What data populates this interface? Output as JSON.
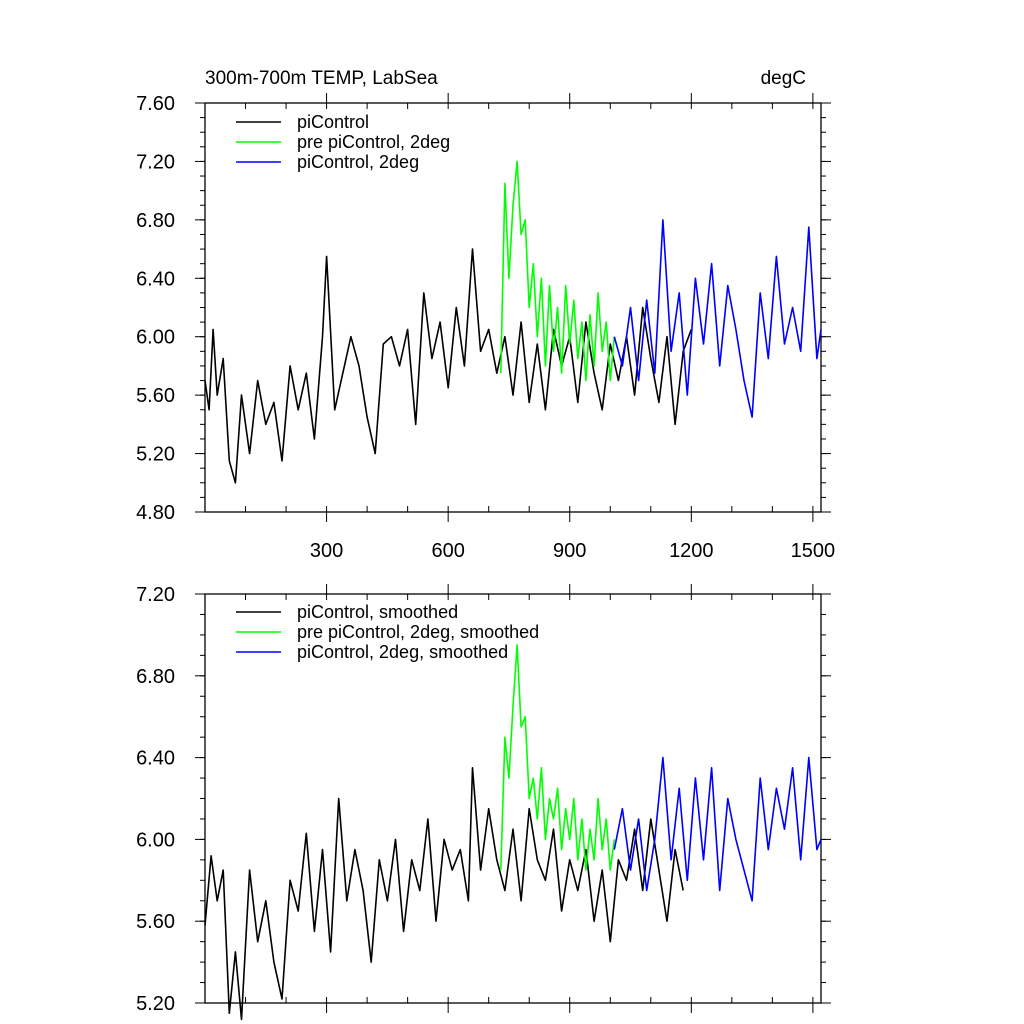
{
  "figure": {
    "title": "300m-700m TEMP, LabSea",
    "units": "degC"
  },
  "chart_data": [
    {
      "type": "line",
      "title": "300m-700m TEMP, LabSea",
      "units_label": "degC",
      "xlabel": "",
      "ylabel": "",
      "xlim": [
        0,
        1520
      ],
      "ylim": [
        4.8,
        7.6
      ],
      "xticks": [
        300,
        600,
        900,
        1200,
        1500
      ],
      "xtick_labels": [
        "300",
        "600",
        "900",
        "1200",
        "1500"
      ],
      "yticks": [
        4.8,
        5.2,
        5.6,
        6.0,
        6.4,
        6.8,
        7.2,
        7.6
      ],
      "ytick_labels": [
        "4.80",
        "5.20",
        "5.60",
        "6.00",
        "6.40",
        "6.80",
        "7.20",
        "7.60"
      ],
      "grid": false,
      "legend_position": "top-left",
      "series": [
        {
          "name": "piControl",
          "color": "#000000",
          "x": [
            0,
            10,
            20,
            30,
            45,
            60,
            75,
            90,
            110,
            130,
            150,
            170,
            190,
            210,
            230,
            250,
            270,
            290,
            300,
            320,
            340,
            360,
            380,
            400,
            420,
            440,
            460,
            480,
            500,
            520,
            540,
            560,
            580,
            600,
            620,
            640,
            660,
            680,
            700,
            720,
            740,
            760,
            780,
            800,
            820,
            840,
            860,
            880,
            900,
            920,
            940,
            960,
            980,
            1000,
            1020,
            1040,
            1060,
            1080,
            1100,
            1120,
            1140,
            1160,
            1180,
            1200
          ],
          "values": [
            5.7,
            5.5,
            6.05,
            5.6,
            5.85,
            5.15,
            5.0,
            5.6,
            5.2,
            5.7,
            5.4,
            5.55,
            5.15,
            5.8,
            5.5,
            5.75,
            5.3,
            6.0,
            6.55,
            5.5,
            5.75,
            6.0,
            5.8,
            5.45,
            5.2,
            5.95,
            6.0,
            5.8,
            6.05,
            5.4,
            6.3,
            5.85,
            6.1,
            5.65,
            6.2,
            5.8,
            6.6,
            5.9,
            6.05,
            5.75,
            6.0,
            5.6,
            6.1,
            5.55,
            5.95,
            5.5,
            6.05,
            5.8,
            6.0,
            5.55,
            6.1,
            5.75,
            5.5,
            5.95,
            5.7,
            6.0,
            5.6,
            6.2,
            5.85,
            5.55,
            6.0,
            5.4,
            5.9,
            6.05
          ]
        },
        {
          "name": "pre piControl, 2deg",
          "color": "#00ff00",
          "x": [
            730,
            740,
            750,
            760,
            770,
            780,
            790,
            800,
            810,
            820,
            830,
            840,
            850,
            860,
            870,
            880,
            890,
            900,
            910,
            920,
            930,
            940,
            950,
            960,
            970,
            980,
            990,
            1000,
            1010
          ],
          "values": [
            5.75,
            7.05,
            6.4,
            6.9,
            7.2,
            6.7,
            6.8,
            6.2,
            6.5,
            6.0,
            6.4,
            5.8,
            6.35,
            5.9,
            6.2,
            5.75,
            6.35,
            5.95,
            6.25,
            5.85,
            6.1,
            5.7,
            6.15,
            5.8,
            6.3,
            5.9,
            6.1,
            5.7,
            6.0
          ]
        },
        {
          "name": "piControl, 2deg",
          "color": "#0000ff",
          "x": [
            1010,
            1030,
            1050,
            1070,
            1090,
            1110,
            1130,
            1150,
            1170,
            1190,
            1210,
            1230,
            1250,
            1270,
            1290,
            1310,
            1330,
            1350,
            1370,
            1390,
            1410,
            1430,
            1450,
            1470,
            1490,
            1510,
            1520
          ],
          "values": [
            6.0,
            5.8,
            6.2,
            5.7,
            6.25,
            5.75,
            6.8,
            5.9,
            6.3,
            5.6,
            6.4,
            5.95,
            6.5,
            5.8,
            6.35,
            6.05,
            5.7,
            5.45,
            6.3,
            5.85,
            6.55,
            5.95,
            6.2,
            5.9,
            6.75,
            5.85,
            6.05
          ]
        }
      ]
    },
    {
      "type": "line",
      "title": "",
      "xlabel": "",
      "ylabel": "",
      "xlim": [
        0,
        1520
      ],
      "ylim": [
        5.2,
        7.2
      ],
      "xticks": [
        300,
        600,
        900,
        1200,
        1500
      ],
      "yticks": [
        5.2,
        5.6,
        6.0,
        6.4,
        6.8,
        7.2
      ],
      "ytick_labels": [
        "5.20",
        "5.60",
        "6.00",
        "6.40",
        "6.80",
        "7.20"
      ],
      "grid": false,
      "legend_position": "top-left",
      "series": [
        {
          "name": "piControl, smoothed",
          "color": "#000000",
          "x": [
            0,
            15,
            30,
            45,
            60,
            75,
            90,
            110,
            130,
            150,
            170,
            190,
            210,
            230,
            250,
            270,
            290,
            310,
            330,
            350,
            370,
            390,
            410,
            430,
            450,
            470,
            490,
            510,
            530,
            550,
            570,
            590,
            610,
            630,
            650,
            660,
            680,
            700,
            720,
            740,
            760,
            780,
            800,
            820,
            840,
            860,
            880,
            900,
            920,
            940,
            960,
            980,
            1000,
            1020,
            1040,
            1060,
            1080,
            1100,
            1120,
            1140,
            1160,
            1180
          ],
          "values": [
            5.58,
            5.92,
            5.7,
            5.85,
            5.15,
            5.45,
            5.12,
            5.85,
            5.5,
            5.7,
            5.4,
            5.22,
            5.8,
            5.65,
            6.03,
            5.55,
            5.95,
            5.45,
            6.2,
            5.7,
            5.95,
            5.75,
            5.4,
            5.9,
            5.7,
            6.0,
            5.55,
            5.9,
            5.75,
            6.1,
            5.6,
            6.0,
            5.85,
            5.95,
            5.7,
            6.35,
            5.85,
            6.15,
            5.9,
            5.75,
            6.05,
            5.7,
            6.15,
            5.9,
            5.8,
            6.05,
            5.65,
            5.9,
            5.75,
            5.95,
            5.6,
            5.85,
            5.5,
            5.9,
            5.8,
            6.05,
            5.75,
            6.1,
            5.85,
            5.6,
            5.95,
            5.75
          ]
        },
        {
          "name": "pre piControl, 2deg, smoothed",
          "color": "#00ff00",
          "x": [
            730,
            740,
            750,
            760,
            770,
            780,
            790,
            800,
            810,
            820,
            830,
            840,
            850,
            860,
            870,
            880,
            890,
            900,
            910,
            920,
            930,
            940,
            950,
            960,
            970,
            980,
            990,
            1000,
            1010
          ],
          "values": [
            5.85,
            6.5,
            6.3,
            6.65,
            6.95,
            6.55,
            6.6,
            6.2,
            6.3,
            6.1,
            6.35,
            6.0,
            6.2,
            6.1,
            6.25,
            5.95,
            6.15,
            6.0,
            6.2,
            5.9,
            6.1,
            5.85,
            6.05,
            5.9,
            6.2,
            5.95,
            6.1,
            5.85,
            6.0
          ]
        },
        {
          "name": "piControl, 2deg, smoothed",
          "color": "#0000ff",
          "x": [
            1010,
            1030,
            1050,
            1070,
            1090,
            1110,
            1130,
            1150,
            1170,
            1190,
            1210,
            1230,
            1250,
            1270,
            1290,
            1310,
            1330,
            1350,
            1370,
            1390,
            1410,
            1430,
            1450,
            1470,
            1490,
            1510,
            1520
          ],
          "values": [
            5.95,
            6.15,
            5.85,
            6.1,
            5.75,
            6.0,
            6.4,
            5.9,
            6.25,
            5.8,
            6.3,
            5.9,
            6.35,
            5.75,
            6.2,
            6.0,
            5.85,
            5.7,
            6.3,
            5.95,
            6.25,
            6.05,
            6.35,
            5.9,
            6.4,
            5.95,
            6.0
          ]
        }
      ]
    }
  ]
}
